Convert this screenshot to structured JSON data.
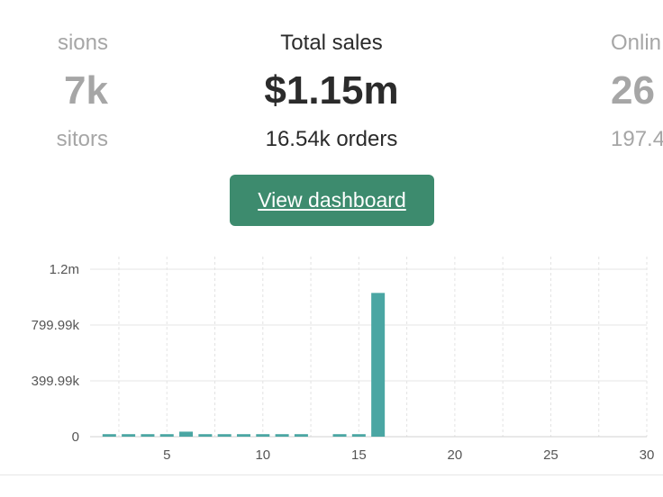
{
  "stats": {
    "left": {
      "label": "sions",
      "value": "7k",
      "sub": "sitors"
    },
    "center": {
      "label": "Total sales",
      "value": "$1.15m",
      "sub": "16.54k orders"
    },
    "right": {
      "label": "Onlin",
      "value": "26",
      "sub": "197.4"
    }
  },
  "button": {
    "label": "View dashboard"
  },
  "colors": {
    "accent": "#3d8b6e",
    "bar": "#4aa6a3",
    "muted_text": "#a6a6a6",
    "primary_text": "#2b2b2b"
  },
  "chart_data": {
    "type": "bar",
    "title": "",
    "xlabel": "",
    "ylabel": "",
    "x_ticks": [
      5,
      10,
      15,
      20,
      25,
      30
    ],
    "y_ticks": [
      {
        "value": 0,
        "label": "0"
      },
      {
        "value": 399990,
        "label": "399.99k"
      },
      {
        "value": 799990,
        "label": "799.99k"
      },
      {
        "value": 1200000,
        "label": "1.2m"
      }
    ],
    "ylim": [
      0,
      1200000
    ],
    "xlim": [
      1,
      30
    ],
    "grid": true,
    "categories": [
      2,
      3,
      4,
      5,
      6,
      7,
      8,
      9,
      10,
      11,
      12,
      13,
      14,
      15,
      16,
      17,
      18,
      19,
      20,
      21,
      22,
      23,
      24,
      25,
      26,
      27,
      28,
      29,
      30
    ],
    "values": [
      18000,
      18000,
      18000,
      18000,
      36000,
      18000,
      18000,
      18000,
      18000,
      18000,
      18000,
      0,
      18000,
      18000,
      1030000,
      0,
      0,
      0,
      0,
      0,
      0,
      0,
      0,
      0,
      0,
      0,
      0,
      0,
      0
    ]
  }
}
